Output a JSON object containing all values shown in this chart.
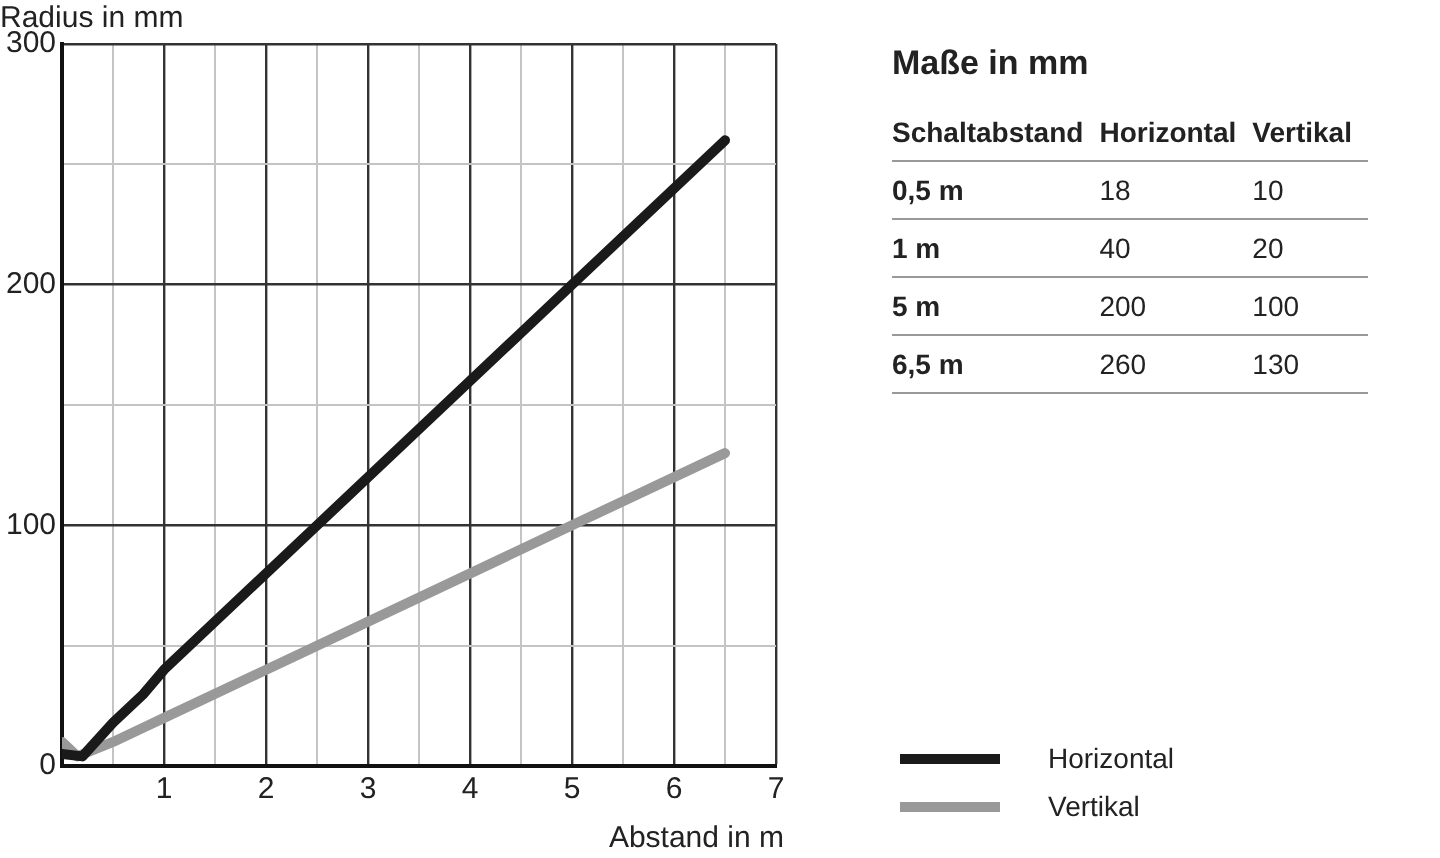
{
  "chart_data": [
    {
      "type": "line",
      "xlabel": "Abstand in m",
      "ylabel": "Radius in mm",
      "xlim": [
        0,
        7
      ],
      "ylim": [
        0,
        300
      ],
      "xticks": [
        {
          "value": 0,
          "label": null
        },
        {
          "value": 0.5,
          "label": null
        },
        1,
        {
          "value": 1.5,
          "label": null
        },
        2,
        {
          "value": 2.5,
          "label": null
        },
        3,
        {
          "value": 3.5,
          "label": null
        },
        4,
        {
          "value": 4.5,
          "label": null
        },
        5,
        {
          "value": 5.5,
          "label": null
        },
        6,
        {
          "value": 6.5,
          "label": null
        },
        7
      ],
      "yticks": [
        0,
        {
          "value": 50,
          "label": null
        },
        100,
        {
          "value": 150,
          "label": null
        },
        200,
        {
          "value": 250,
          "label": null
        },
        300
      ],
      "grid": true,
      "legend": "bottom right",
      "marker": "none",
      "line_style": "solid",
      "series": [
        {
          "name": "Horizontal",
          "color": "#1a1a1a",
          "x": [
            0,
            0.2,
            0.5,
            0.8,
            1,
            5,
            6.5
          ],
          "values": [
            5,
            4,
            18,
            30,
            40,
            200,
            260
          ]
        },
        {
          "name": "Vertikal",
          "color": "#999999",
          "x": [
            0,
            0.15,
            0.5,
            0.8,
            1,
            5,
            6.5
          ],
          "values": [
            10,
            4,
            10,
            16,
            20,
            100,
            130
          ]
        }
      ]
    },
    {
      "type": "other",
      "title": "Maße in mm",
      "annotations": [
        "Schaltabstand",
        "Horizontal",
        "Vertikal",
        "0,5 m",
        "18",
        "10",
        "1 m",
        "40",
        "20",
        "5 m",
        "200",
        "100",
        "6,5 m",
        "260",
        "130"
      ]
    }
  ]
}
